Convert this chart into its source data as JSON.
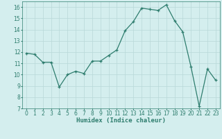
{
  "x": [
    0,
    1,
    2,
    3,
    4,
    5,
    6,
    7,
    8,
    9,
    10,
    11,
    12,
    13,
    14,
    15,
    16,
    17,
    18,
    19,
    20,
    21,
    22,
    23
  ],
  "y": [
    11.9,
    11.8,
    11.1,
    11.1,
    8.9,
    10.0,
    10.3,
    10.1,
    11.2,
    11.2,
    11.7,
    12.2,
    13.9,
    14.7,
    15.9,
    15.8,
    15.7,
    16.2,
    14.8,
    13.8,
    10.7,
    7.2,
    10.5,
    9.5
  ],
  "line_color": "#2e7d6e",
  "marker": "+",
  "bg_color": "#d4eeee",
  "grid_color": "#b8d8d8",
  "xlabel": "Humidex (Indice chaleur)",
  "ylim": [
    7,
    16.5
  ],
  "xlim": [
    -0.5,
    23.5
  ],
  "yticks": [
    7,
    8,
    9,
    10,
    11,
    12,
    13,
    14,
    15,
    16
  ],
  "xticks": [
    0,
    1,
    2,
    3,
    4,
    5,
    6,
    7,
    8,
    9,
    10,
    11,
    12,
    13,
    14,
    15,
    16,
    17,
    18,
    19,
    20,
    21,
    22,
    23
  ],
  "tick_fontsize": 5.5,
  "label_fontsize": 6.5,
  "line_width": 0.9,
  "marker_size": 3
}
